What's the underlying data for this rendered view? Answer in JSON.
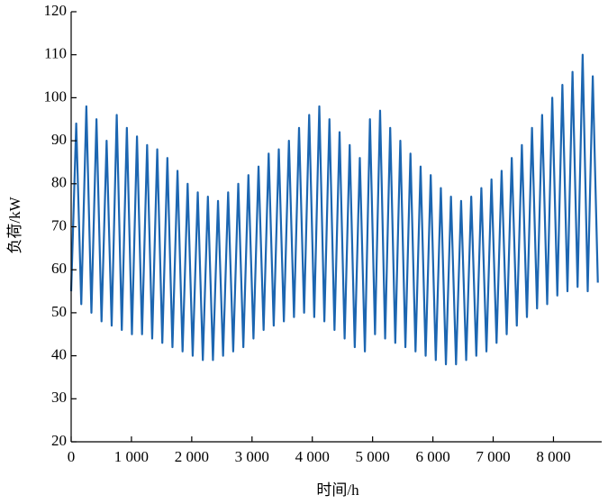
{
  "chart_data": {
    "type": "line",
    "xlabel": "时间/h",
    "ylabel": "负荷/kW",
    "x": [
      0,
      84,
      168,
      252,
      336,
      420,
      504,
      588,
      672,
      756,
      840,
      924,
      1008,
      1092,
      1176,
      1260,
      1344,
      1428,
      1512,
      1596,
      1680,
      1764,
      1848,
      1932,
      2016,
      2100,
      2184,
      2268,
      2352,
      2436,
      2520,
      2604,
      2688,
      2772,
      2856,
      2940,
      3024,
      3108,
      3192,
      3276,
      3360,
      3444,
      3528,
      3612,
      3696,
      3780,
      3864,
      3948,
      4032,
      4116,
      4200,
      4284,
      4368,
      4452,
      4536,
      4620,
      4704,
      4788,
      4872,
      4956,
      5040,
      5124,
      5208,
      5292,
      5376,
      5460,
      5544,
      5628,
      5712,
      5796,
      5880,
      5964,
      6048,
      6132,
      6216,
      6300,
      6384,
      6468,
      6552,
      6636,
      6720,
      6804,
      6888,
      6972,
      7056,
      7140,
      7224,
      7308,
      7392,
      7476,
      7560,
      7644,
      7728,
      7812,
      7896,
      7980,
      8064,
      8148,
      8232,
      8316,
      8400,
      8484,
      8568,
      8652,
      8736
    ],
    "series": [
      {
        "color": "#1c66b1",
        "values": [
          55,
          94,
          52,
          98,
          50,
          95,
          48,
          90,
          47,
          96,
          46,
          93,
          45,
          91,
          45,
          89,
          44,
          88,
          43,
          86,
          42,
          83,
          41,
          80,
          40,
          78,
          39,
          77,
          39,
          76,
          40,
          78,
          41,
          80,
          42,
          82,
          44,
          84,
          46,
          87,
          47,
          88,
          48,
          90,
          49,
          93,
          50,
          96,
          49,
          98,
          48,
          95,
          46,
          92,
          44,
          89,
          42,
          86,
          41,
          95,
          45,
          97,
          44,
          93,
          43,
          90,
          42,
          87,
          41,
          84,
          40,
          82,
          39,
          79,
          38,
          77,
          38,
          76,
          39,
          77,
          40,
          79,
          41,
          81,
          43,
          83,
          45,
          86,
          47,
          89,
          49,
          93,
          51,
          96,
          52,
          100,
          54,
          103,
          55,
          106,
          56,
          110,
          55,
          105,
          57
        ]
      }
    ],
    "xlim": [
      0,
      8800
    ],
    "xticks": [
      0,
      {
        "value": 1000,
        "label": "1 000"
      },
      {
        "value": 2000,
        "label": "2 000"
      },
      {
        "value": 3000,
        "label": "3 000"
      },
      {
        "value": 4000,
        "label": "4 000"
      },
      {
        "value": 5000,
        "label": "5 000"
      },
      {
        "value": 6000,
        "label": "6 000"
      },
      {
        "value": 7000,
        "label": "7 000"
      },
      {
        "value": 8000,
        "label": "8 000"
      }
    ],
    "ylim": [
      20,
      120
    ],
    "yticks": [
      20,
      30,
      40,
      50,
      60,
      70,
      80,
      90,
      100,
      110,
      120
    ]
  }
}
